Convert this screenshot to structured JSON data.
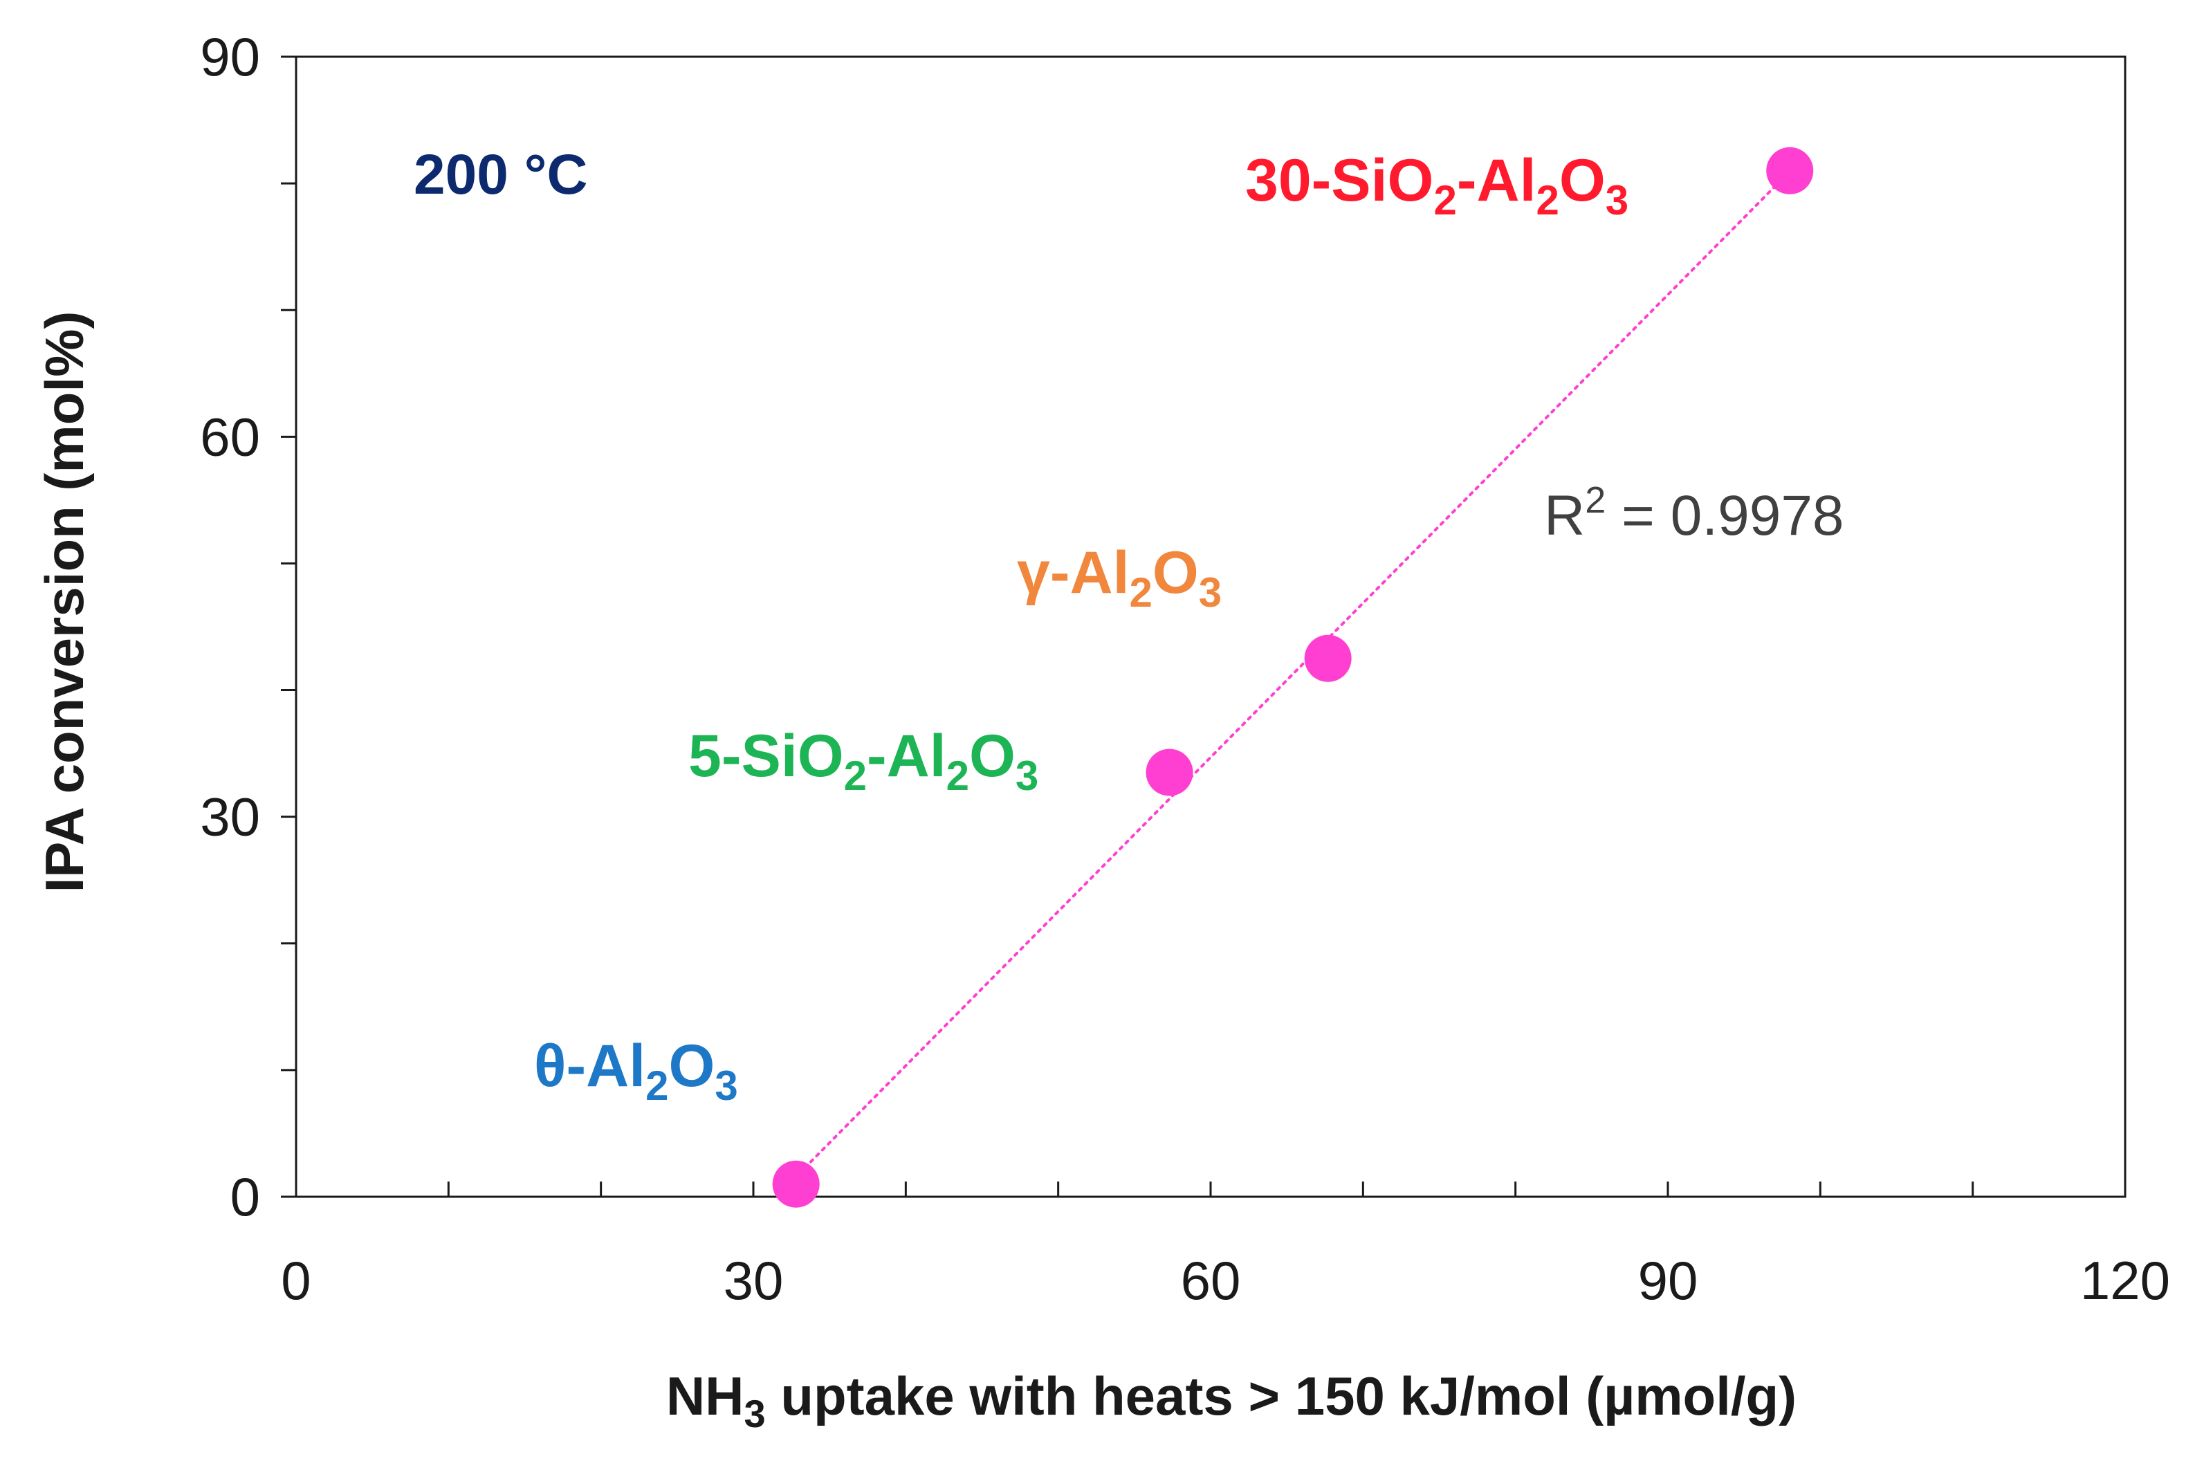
{
  "chart_data": {
    "type": "scatter",
    "title": "",
    "xlabel": {
      "pre": "NH",
      "sub": "3",
      "post": " uptake with heats > 150 kJ/mol (µmol/g)"
    },
    "ylabel": "IPA conversion (mol%)",
    "xlim": [
      0,
      120
    ],
    "ylim": [
      0,
      90
    ],
    "x_ticks": [
      0,
      30,
      60,
      90,
      120
    ],
    "y_ticks": [
      0,
      30,
      60,
      90
    ],
    "x_minor_step": 10,
    "y_minor_step": 10,
    "grid": false,
    "condition_label": "200 °C",
    "condition_color": "#0d2a6e",
    "marker_color": "#ff3fd1",
    "trendline": {
      "type": "linear",
      "style": "dotted",
      "color": "#ff3fd1",
      "x_range": [
        33,
        98
      ],
      "r2_label": {
        "pre": "R",
        "sup": "2",
        "post": " = 0.9978"
      }
    },
    "points": [
      {
        "x": 32.8,
        "y": 1.0,
        "label": {
          "parts": [
            {
              "t": "θ-Al"
            },
            {
              "t": "2",
              "sub": true
            },
            {
              "t": "O"
            },
            {
              "t": "3",
              "sub": true
            }
          ]
        },
        "label_color": "#1e78c8"
      },
      {
        "x": 57.3,
        "y": 33.5,
        "label": {
          "parts": [
            {
              "t": "5-SiO"
            },
            {
              "t": "2",
              "sub": true
            },
            {
              "t": "-Al"
            },
            {
              "t": "2",
              "sub": true
            },
            {
              "t": "O"
            },
            {
              "t": "3",
              "sub": true
            }
          ]
        },
        "label_color": "#1db455"
      },
      {
        "x": 67.7,
        "y": 42.5,
        "label": {
          "parts": [
            {
              "t": "γ-Al"
            },
            {
              "t": "2",
              "sub": true
            },
            {
              "t": "O"
            },
            {
              "t": "3",
              "sub": true
            }
          ]
        },
        "label_color": "#f0873c"
      },
      {
        "x": 98.0,
        "y": 81.0,
        "label": {
          "parts": [
            {
              "t": "30-SiO"
            },
            {
              "t": "2",
              "sub": true
            },
            {
              "t": "-Al"
            },
            {
              "t": "2",
              "sub": true
            },
            {
              "t": "O"
            },
            {
              "t": "3",
              "sub": true
            }
          ]
        },
        "label_color": "#ff1a2e"
      }
    ]
  }
}
